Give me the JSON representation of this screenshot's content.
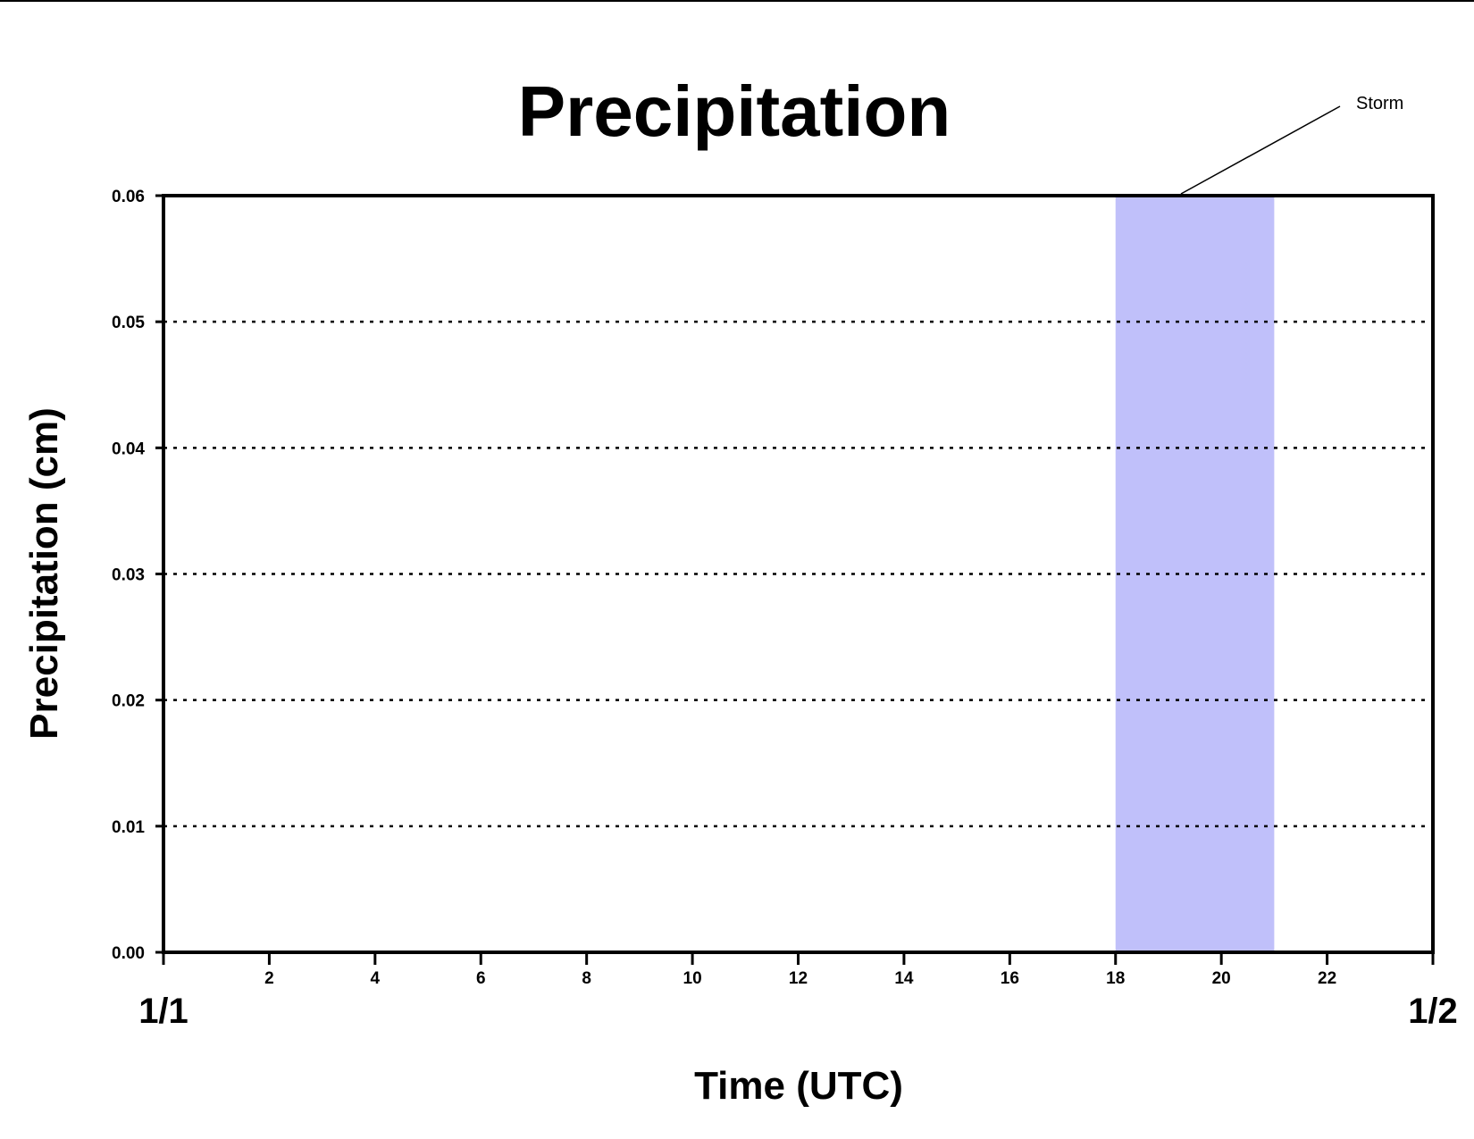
{
  "chart_data": {
    "type": "line",
    "title": "Precipitation",
    "xlabel": "Time (UTC)",
    "ylabel": "Precipitation (cm)",
    "xlim": [
      0,
      24
    ],
    "ylim": [
      0,
      0.06
    ],
    "x_ticks": [
      2,
      4,
      6,
      8,
      10,
      12,
      14,
      16,
      18,
      20,
      22
    ],
    "y_ticks": [
      "0.00",
      "0.01",
      "0.02",
      "0.03",
      "0.04",
      "0.05",
      "0.06"
    ],
    "date_labels": [
      {
        "x": 0,
        "label": "1/1"
      },
      {
        "x": 24,
        "label": "1/2"
      }
    ],
    "grid": "horizontal-dotted",
    "series": [
      {
        "x": [
          0,
          24
        ],
        "values": [
          0,
          0
        ],
        "color": "#8b0000"
      }
    ],
    "shaded_regions": [
      {
        "x_start": 18,
        "x_end": 21,
        "color": "#c0c0fa"
      }
    ],
    "annotations": [
      {
        "text": "Storm"
      }
    ]
  }
}
